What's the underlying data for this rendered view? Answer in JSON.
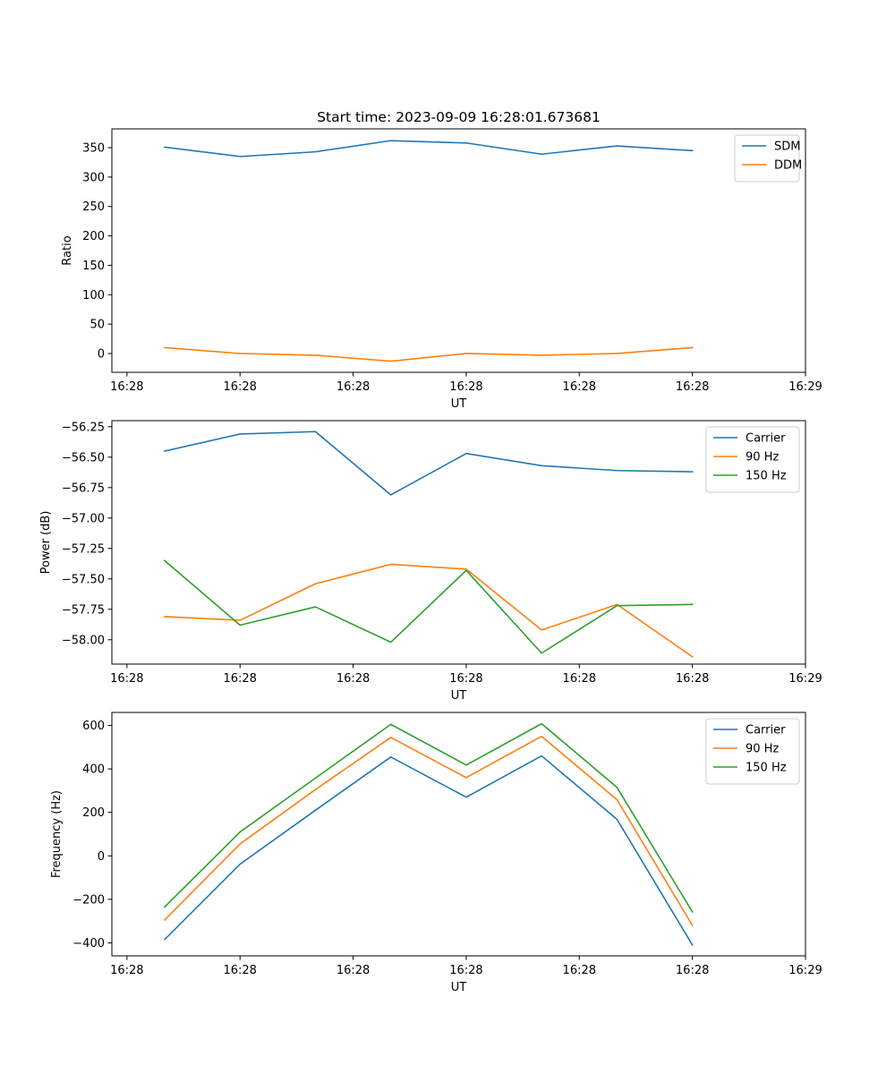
{
  "figure": {
    "title": "Start time: 2023-09-09 16:28:01.673681"
  },
  "chart_data": [
    {
      "type": "line",
      "title": "Start time: 2023-09-09 16:28:01.673681",
      "xlabel": "UT",
      "ylabel": "Ratio",
      "x": [
        1,
        2,
        3,
        4,
        5,
        6,
        7,
        8
      ],
      "xlim": [
        0.3,
        9.5
      ],
      "x_ticks": [
        0.5,
        2,
        3.5,
        5,
        6.5,
        8,
        9.5
      ],
      "x_tick_labels": [
        "16:28",
        "16:28",
        "16:28",
        "16:28",
        "16:28",
        "16:28",
        "16:29"
      ],
      "ylim": [
        -32,
        382
      ],
      "y_ticks": [
        0,
        50,
        100,
        150,
        200,
        250,
        300,
        350
      ],
      "y_tick_labels": [
        "0",
        "50",
        "100",
        "150",
        "200",
        "250",
        "300",
        "350"
      ],
      "legend": "top-right",
      "series": [
        {
          "name": "SDM",
          "color": "#1f77b4",
          "values": [
            351,
            335,
            343,
            362,
            358,
            339,
            353,
            345
          ]
        },
        {
          "name": "DDM",
          "color": "#ff7f0e",
          "values": [
            10,
            0,
            -3,
            -13,
            0,
            -3,
            0,
            10
          ]
        }
      ]
    },
    {
      "type": "line",
      "title": "",
      "xlabel": "UT",
      "ylabel": "Power (dB)",
      "x": [
        1,
        2,
        3,
        4,
        5,
        6,
        7,
        8
      ],
      "xlim": [
        0.3,
        9.5
      ],
      "x_ticks": [
        0.5,
        2,
        3.5,
        5,
        6.5,
        8,
        9.5
      ],
      "x_tick_labels": [
        "16:28",
        "16:28",
        "16:28",
        "16:28",
        "16:28",
        "16:28",
        "16:29"
      ],
      "ylim": [
        -58.2,
        -56.2
      ],
      "y_ticks": [
        -58.0,
        -57.75,
        -57.5,
        -57.25,
        -57.0,
        -56.75,
        -56.5,
        -56.25
      ],
      "y_tick_labels": [
        "−58.00",
        "−57.75",
        "−57.50",
        "−57.25",
        "−57.00",
        "−56.75",
        "−56.50",
        "−56.25"
      ],
      "legend": "top-right",
      "series": [
        {
          "name": "Carrier",
          "color": "#1f77b4",
          "values": [
            -56.45,
            -56.31,
            -56.29,
            -56.81,
            -56.47,
            -56.57,
            -56.61,
            -56.62
          ]
        },
        {
          "name": "90 Hz",
          "color": "#ff7f0e",
          "values": [
            -57.81,
            -57.84,
            -57.54,
            -57.38,
            -57.42,
            -57.92,
            -57.71,
            -58.14
          ]
        },
        {
          "name": "150 Hz",
          "color": "#2ca02c",
          "values": [
            -57.35,
            -57.88,
            -57.73,
            -58.02,
            -57.43,
            -58.11,
            -57.72,
            -57.71
          ]
        }
      ]
    },
    {
      "type": "line",
      "title": "",
      "xlabel": "UT",
      "ylabel": "Frequency (Hz)",
      "x": [
        1,
        2,
        3,
        4,
        5,
        6,
        7,
        8
      ],
      "xlim": [
        0.3,
        9.5
      ],
      "x_ticks": [
        0.5,
        2,
        3.5,
        5,
        6.5,
        8,
        9.5
      ],
      "x_tick_labels": [
        "16:28",
        "16:28",
        "16:28",
        "16:28",
        "16:28",
        "16:28",
        "16:29"
      ],
      "ylim": [
        -460,
        660
      ],
      "y_ticks": [
        -400,
        -200,
        0,
        200,
        400,
        600
      ],
      "y_tick_labels": [
        "−400",
        "−200",
        "0",
        "200",
        "400",
        "600"
      ],
      "legend": "top-right",
      "series": [
        {
          "name": "Carrier",
          "color": "#1f77b4",
          "values": [
            -385,
            -38,
            210,
            455,
            270,
            460,
            168,
            -410
          ]
        },
        {
          "name": "90 Hz",
          "color": "#ff7f0e",
          "values": [
            -295,
            55,
            305,
            545,
            360,
            550,
            258,
            -320
          ]
        },
        {
          "name": "150 Hz",
          "color": "#2ca02c",
          "values": [
            -235,
            110,
            358,
            605,
            418,
            608,
            315,
            -258
          ]
        }
      ]
    }
  ]
}
